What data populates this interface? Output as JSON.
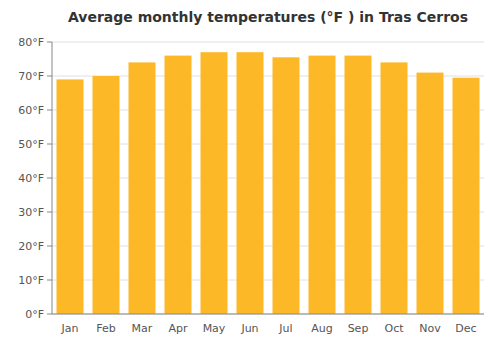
{
  "chart_data": {
    "type": "bar",
    "title": "Average monthly temperatures (°F ) in Tras Cerros",
    "categories": [
      "Jan",
      "Feb",
      "Mar",
      "Apr",
      "May",
      "Jun",
      "Jul",
      "Aug",
      "Sep",
      "Oct",
      "Nov",
      "Dec"
    ],
    "values": [
      69,
      70,
      74,
      76,
      77,
      77,
      75.5,
      76,
      76,
      74,
      71,
      69.5
    ],
    "color": "#FDB827",
    "ylim": [
      0,
      80
    ],
    "yticks": [
      {
        "value": 0,
        "label": "0°F"
      },
      {
        "value": 10,
        "label": "10°F"
      },
      {
        "value": 20,
        "label": "20°F"
      },
      {
        "value": 30,
        "label": "30°F"
      },
      {
        "value": 40,
        "label": "40°F"
      },
      {
        "value": 50,
        "label": "50°F"
      },
      {
        "value": 60,
        "label": "60°F"
      },
      {
        "value": 70,
        "label": "70°F"
      },
      {
        "value": 80,
        "label": "80°F"
      }
    ],
    "grid": true
  }
}
